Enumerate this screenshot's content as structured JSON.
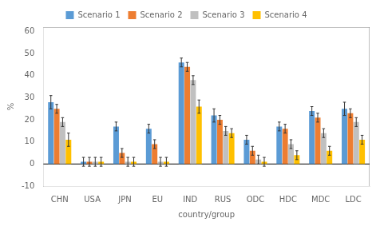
{
  "chart_data": {
    "type": "bar",
    "categories": [
      "CHN",
      "USA",
      "JPN",
      "EU",
      "IND",
      "RUS",
      "ODC",
      "HDC",
      "MDC",
      "LDC"
    ],
    "series": [
      {
        "name": "Scenario 1",
        "color": "#5b9bd5",
        "values": [
          28,
          1,
          17,
          16,
          46,
          22,
          11,
          17,
          24,
          25
        ],
        "errors": [
          3,
          2,
          2,
          2,
          2,
          3,
          2,
          2,
          2,
          3
        ]
      },
      {
        "name": "Scenario 2",
        "color": "#ed7d31",
        "values": [
          25,
          1,
          5,
          9,
          44,
          20,
          6,
          16,
          21,
          23
        ],
        "errors": [
          2,
          2,
          2,
          2,
          2,
          2,
          2,
          2,
          2,
          2
        ]
      },
      {
        "name": "Scenario 3",
        "color": "#c0c0c0",
        "values": [
          19,
          1,
          1,
          1,
          38,
          15,
          2,
          9,
          14,
          19
        ],
        "errors": [
          2,
          2,
          2,
          2,
          2,
          2,
          2,
          2,
          2,
          2
        ]
      },
      {
        "name": "Scenario 4",
        "color": "#ffc000",
        "values": [
          11,
          1,
          1,
          1,
          26,
          14,
          1,
          4,
          6,
          11
        ],
        "errors": [
          3,
          2,
          2,
          2,
          3,
          2,
          2,
          2,
          2,
          2
        ]
      }
    ],
    "xlabel": "country/group",
    "ylabel": "%",
    "ylim": [
      -10,
      62
    ],
    "yticks": [
      -10,
      0,
      10,
      20,
      30,
      40,
      50,
      60
    ],
    "grid": false,
    "legend": "top"
  }
}
